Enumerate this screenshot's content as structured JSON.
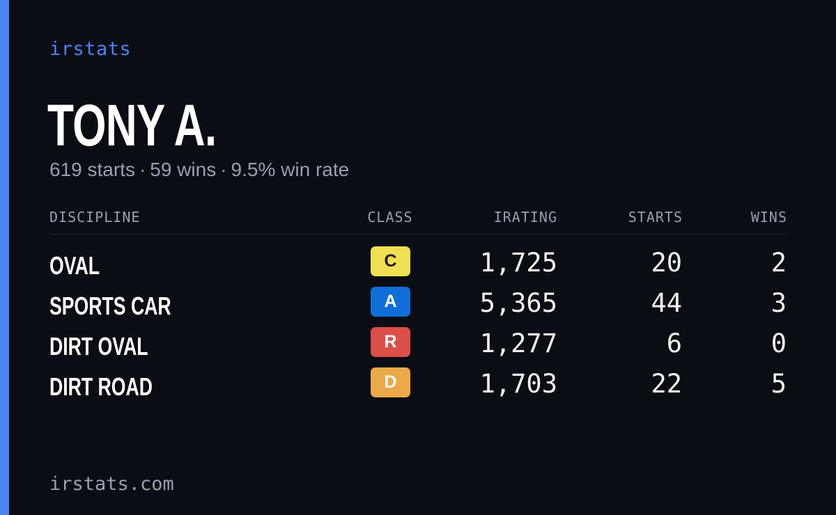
{
  "brand": "irstats",
  "driver": {
    "name": "TONY A.",
    "starts": "619 starts",
    "wins": "59 wins",
    "win_rate": "9.5% win rate",
    "separator": "·"
  },
  "table": {
    "headers": {
      "discipline": "DISCIPLINE",
      "class": "CLASS",
      "irating": "IRATING",
      "starts": "STARTS",
      "wins": "WINS"
    },
    "rows": [
      {
        "discipline": "OVAL",
        "class": "C",
        "class_color": "#efe052",
        "class_text_color": "#1c1c1c",
        "irating": "1,725",
        "starts": "20",
        "wins": "2"
      },
      {
        "discipline": "SPORTS CAR",
        "class": "A",
        "class_color": "#0f6fd9",
        "class_text_color": "#ffffff",
        "irating": "5,365",
        "starts": "44",
        "wins": "3"
      },
      {
        "discipline": "DIRT OVAL",
        "class": "R",
        "class_color": "#db4f49",
        "class_text_color": "#ffffff",
        "irating": "1,277",
        "starts": "6",
        "wins": "0"
      },
      {
        "discipline": "DIRT ROAD",
        "class": "D",
        "class_color": "#eba94a",
        "class_text_color": "#ffffff",
        "irating": "1,703",
        "starts": "22",
        "wins": "5"
      }
    ]
  },
  "footer": "irstats.com",
  "colors": {
    "background": "#0a0d14",
    "accent": "#4a84f5",
    "muted_text": "#98a0ae",
    "primary_text": "#ffffff"
  }
}
